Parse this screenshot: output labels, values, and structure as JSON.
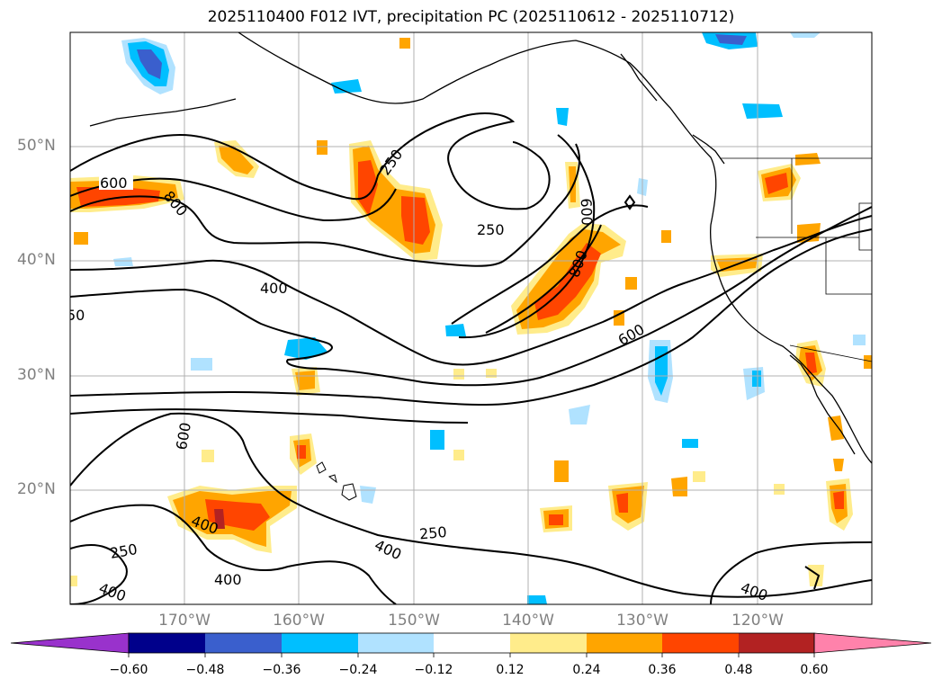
{
  "title": "2025110400 F012 IVT, precipitation PC (2025110612 - 2025110712)",
  "lat_labels": [
    "50°N",
    "40°N",
    "30°N",
    "20°N"
  ],
  "lon_labels": [
    "170°W",
    "160°W",
    "150°W",
    "140°W",
    "130°W",
    "120°W"
  ],
  "contour_labels": [
    "600",
    "800",
    "400",
    "250",
    "250",
    "600",
    "800",
    "600",
    "50",
    "600",
    "400",
    "250",
    "400",
    "250",
    "400",
    "400"
  ],
  "colorbar": {
    "ticks": [
      "−0.60",
      "−0.48",
      "−0.36",
      "−0.24",
      "−0.12",
      "0.12",
      "0.24",
      "0.36",
      "0.48",
      "0.60"
    ],
    "colors": [
      "#9932cc",
      "#00008b",
      "#3a5fcd",
      "#00bfff",
      "#b0e2ff",
      "#ffffff",
      "#ffec8b",
      "#ffa500",
      "#ff4500",
      "#b22222",
      "#ff82ab"
    ]
  },
  "map_data": {
    "extent": {
      "lon_min": -180,
      "lon_max": -110,
      "lat_min": 10,
      "lat_max": 60
    },
    "ivt_contour_levels": [
      250,
      400,
      600,
      800
    ],
    "gridlines": true
  }
}
